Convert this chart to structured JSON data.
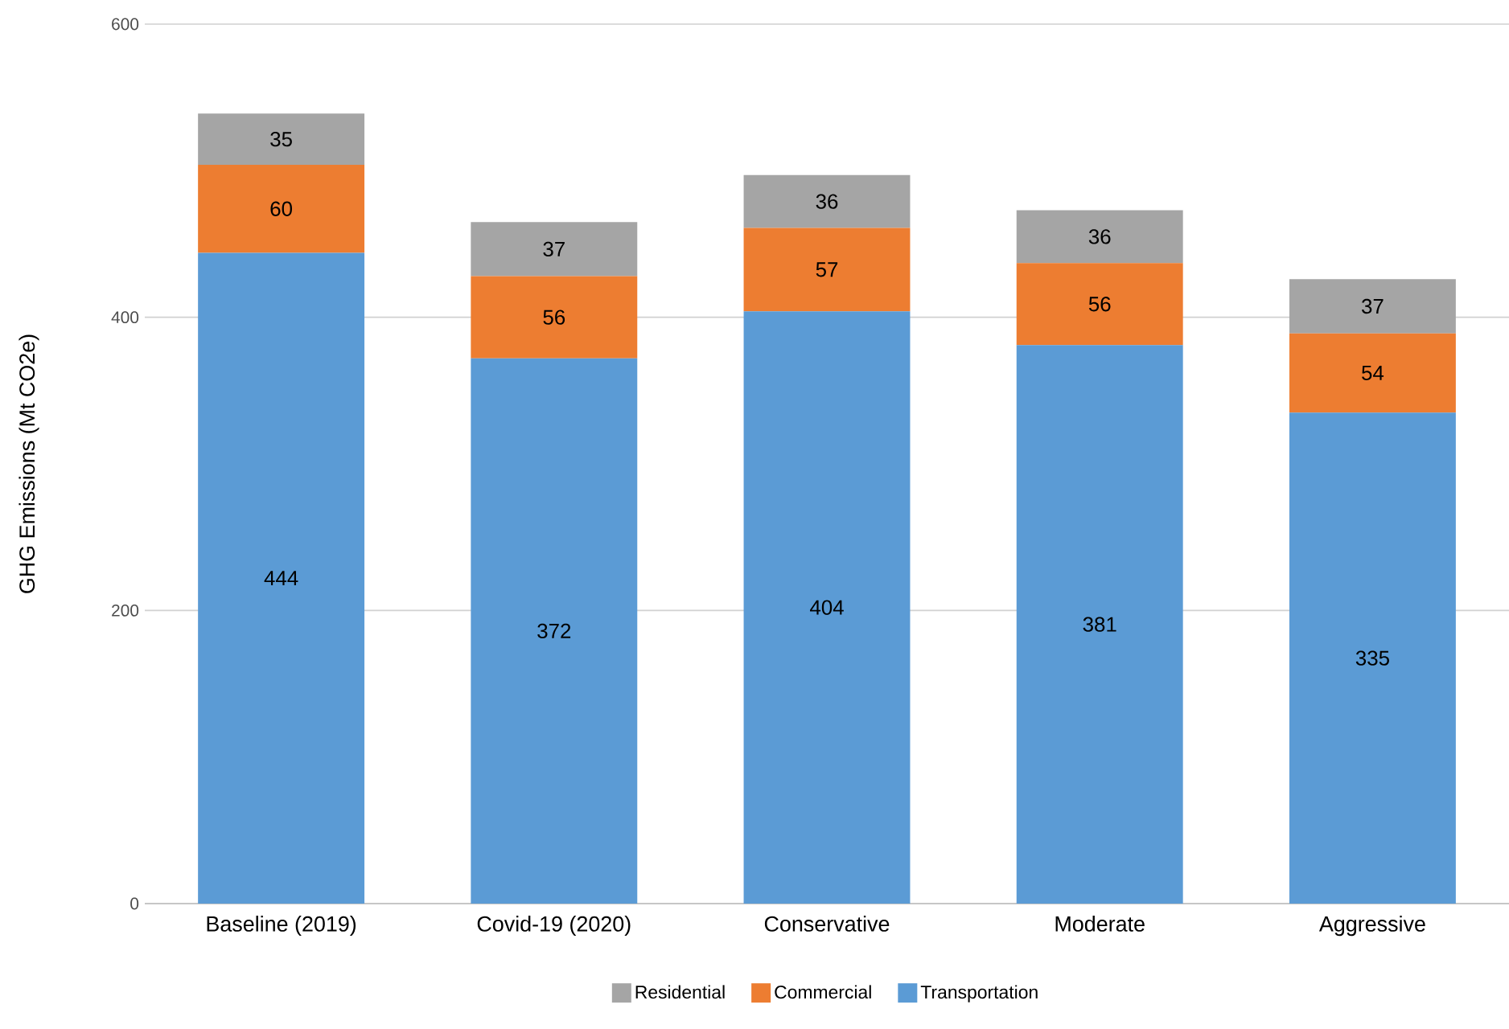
{
  "chart_data": {
    "type": "bar",
    "stacked": true,
    "ylabel": "GHG Emissions (Mt CO2e)",
    "categories": [
      "Baseline (2019)",
      "Covid-19 (2020)",
      "Conservative",
      "Moderate",
      "Aggressive"
    ],
    "series": [
      {
        "name": "Transportation",
        "color": "#5b9bd5",
        "values": [
          444,
          372,
          404,
          381,
          335
        ]
      },
      {
        "name": "Commercial",
        "color": "#ed7d31",
        "values": [
          60,
          56,
          57,
          56,
          54
        ]
      },
      {
        "name": "Residential",
        "color": "#a5a5a5",
        "values": [
          35,
          37,
          36,
          36,
          37
        ]
      }
    ],
    "ylim": [
      0,
      600
    ],
    "yticks": [
      0,
      200,
      400,
      600
    ],
    "grid": "y",
    "legend": "bottom",
    "data_labels": true
  }
}
